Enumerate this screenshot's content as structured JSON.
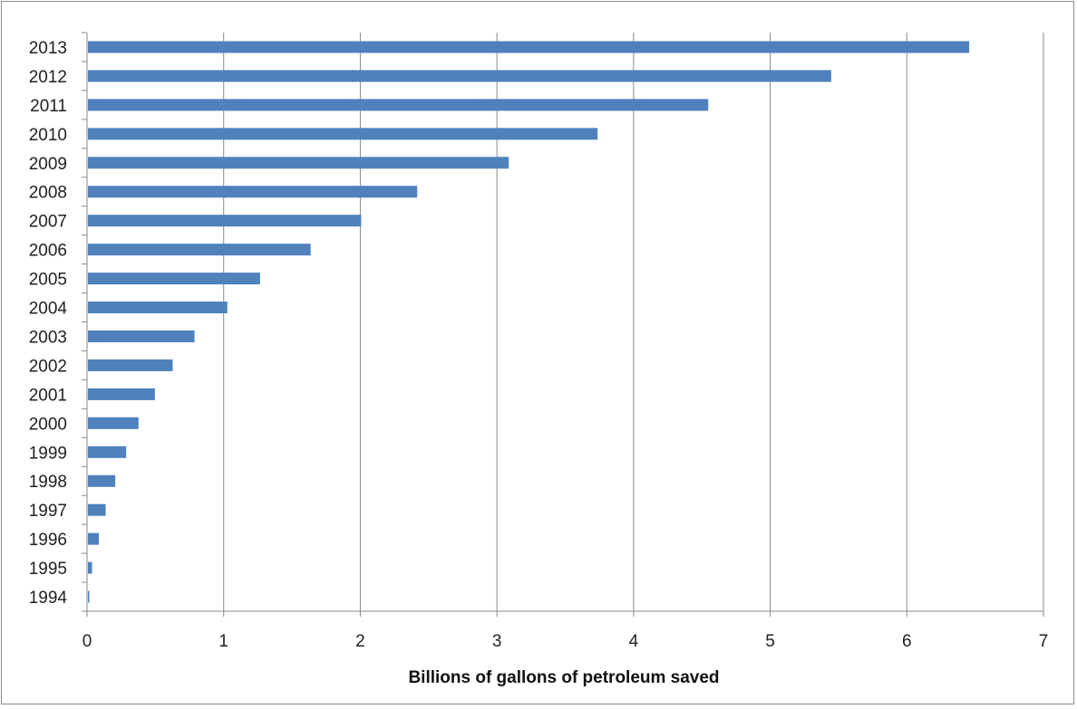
{
  "chart_data": {
    "type": "bar",
    "orientation": "horizontal",
    "title": "",
    "xlabel": "Billions of gallons of petroleum saved",
    "ylabel": "",
    "xlim": [
      0,
      7
    ],
    "x_ticks": [
      "0",
      "1",
      "2",
      "3",
      "4",
      "5",
      "6",
      "7"
    ],
    "grid": "vertical",
    "legend": "none",
    "bar_color": "#4f81bd",
    "categories": [
      "1994",
      "1995",
      "1996",
      "1997",
      "1998",
      "1999",
      "2000",
      "2001",
      "2002",
      "2003",
      "2004",
      "2005",
      "2006",
      "2007",
      "2008",
      "2009",
      "2010",
      "2011",
      "2012",
      "2013"
    ],
    "values": [
      0.01,
      0.03,
      0.08,
      0.13,
      0.2,
      0.28,
      0.37,
      0.49,
      0.62,
      0.78,
      1.02,
      1.26,
      1.63,
      2.0,
      2.41,
      3.08,
      3.73,
      4.54,
      5.44,
      6.45
    ]
  }
}
